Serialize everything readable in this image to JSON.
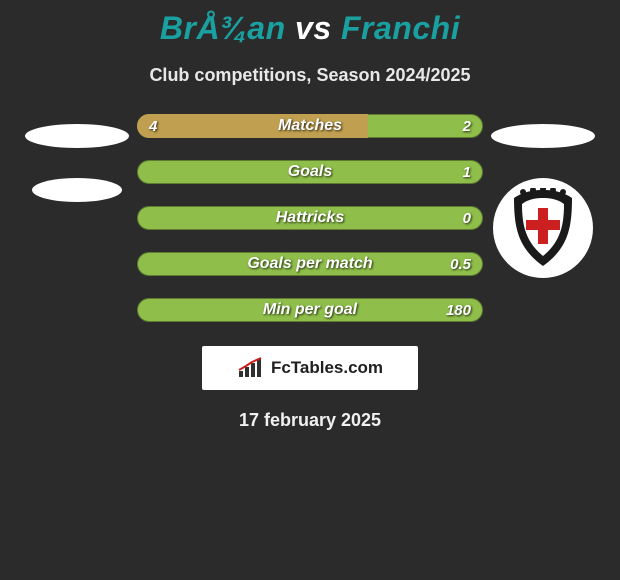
{
  "background_color": "#2b2b2b",
  "header": {
    "player1": "BrÅ¾an",
    "vs": "vs",
    "player2": "Franchi",
    "title_color": "#1aa0a0",
    "title_fontsize": 32,
    "subtitle": "Club competitions, Season 2024/2025",
    "subtitle_fontsize": 18
  },
  "colors": {
    "bar_full": "#8fbf4a",
    "bar_left": "#c0a050",
    "bar_border": "#3a3a3a"
  },
  "stats": [
    {
      "label": "Matches",
      "left_val": "4",
      "right_val": "2",
      "left_pct": 66.7
    },
    {
      "label": "Goals",
      "left_val": "",
      "right_val": "1",
      "left_pct": 0
    },
    {
      "label": "Hattricks",
      "left_val": "",
      "right_val": "0",
      "left_pct": 0
    },
    {
      "label": "Goals per match",
      "left_val": "",
      "right_val": "0.5",
      "left_pct": 0
    },
    {
      "label": "Min per goal",
      "left_val": "",
      "right_val": "180",
      "left_pct": 0
    }
  ],
  "left_side": {
    "shapes": [
      {
        "type": "ellipse",
        "size": "big"
      },
      {
        "type": "ellipse",
        "size": "small"
      }
    ]
  },
  "right_side": {
    "shapes": [
      {
        "type": "ellipse",
        "size": "big"
      },
      {
        "type": "badge"
      }
    ]
  },
  "logo": {
    "text": "FcTables.com",
    "icon": "bars-icon"
  },
  "date": "17 february 2025"
}
